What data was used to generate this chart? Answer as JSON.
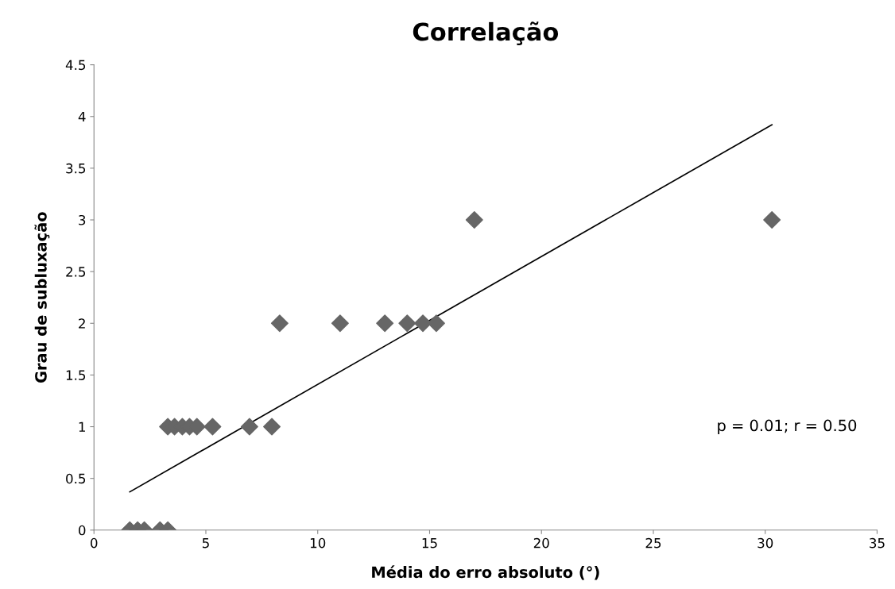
{
  "chart_data": {
    "type": "scatter",
    "title": "Correlação",
    "xlabel": "Média do erro absoluto (°)",
    "ylabel": "Grau de subluxação",
    "xlim": [
      0,
      35
    ],
    "xticks": [
      0,
      5,
      10,
      15,
      20,
      25,
      30,
      35
    ],
    "ylim": [
      0,
      4.5
    ],
    "yticks": [
      0,
      0.5,
      1,
      1.5,
      2,
      2.5,
      3,
      3.5,
      4,
      4.5
    ],
    "grid": false,
    "legend": false,
    "series": [
      {
        "color": "#666666",
        "marker": "diamond",
        "x": [
          1.6,
          1.95,
          2.25,
          2.95,
          3.3,
          3.3,
          3.6,
          3.95,
          4.27,
          4.6,
          5.3,
          6.95,
          7.95,
          8.3,
          11.0,
          13.0,
          14.0,
          14.7,
          15.3,
          17.0,
          30.3
        ],
        "values": [
          0,
          0,
          0,
          0,
          0,
          1,
          1,
          1,
          1,
          1,
          1,
          1,
          1,
          2,
          2,
          2,
          2,
          2,
          2,
          3,
          3
        ]
      },
      {
        "type": "line",
        "color": "#000000",
        "x": [
          1.6,
          30.3
        ],
        "values": [
          0.37,
          3.92
        ]
      }
    ],
    "annotations": [
      "p = 0.01; r = 0.50"
    ]
  }
}
